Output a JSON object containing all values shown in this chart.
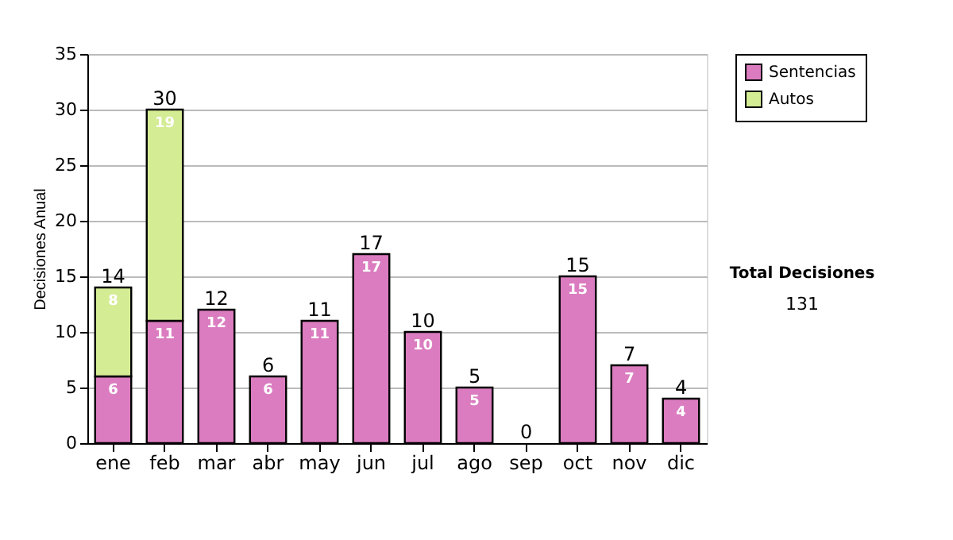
{
  "chart_data": {
    "type": "bar",
    "stacked": true,
    "ylabel": "Decisiones Anual",
    "categories": [
      "ene",
      "feb",
      "mar",
      "abr",
      "may",
      "jun",
      "jul",
      "ago",
      "sep",
      "oct",
      "nov",
      "dic"
    ],
    "series": [
      {
        "name": "Sentencias",
        "color": "#db7cc0",
        "values": [
          6,
          11,
          12,
          6,
          11,
          17,
          10,
          5,
          0,
          15,
          7,
          4
        ],
        "value_labels": [
          "6",
          "11",
          "12",
          "6",
          "11",
          "17",
          "10",
          "5",
          null,
          "15",
          "7",
          "4"
        ]
      },
      {
        "name": "Autos",
        "color": "#d4ec94",
        "values": [
          8,
          19,
          0,
          0,
          0,
          0,
          0,
          0,
          0,
          0,
          0,
          0
        ],
        "value_labels": [
          "8",
          "19",
          null,
          null,
          null,
          null,
          null,
          null,
          null,
          null,
          null,
          null
        ]
      }
    ],
    "totals": [
      "14",
      "30",
      "12",
      "6",
      "11",
      "17",
      "10",
      "5",
      "0",
      "15",
      "7",
      "4"
    ],
    "ylim": [
      0,
      35
    ],
    "yticks": [
      0,
      5,
      10,
      15,
      20,
      25,
      30,
      35
    ],
    "grid": "y",
    "legend": "right",
    "annotations": [
      "Total Decisiones",
      "131"
    ]
  }
}
